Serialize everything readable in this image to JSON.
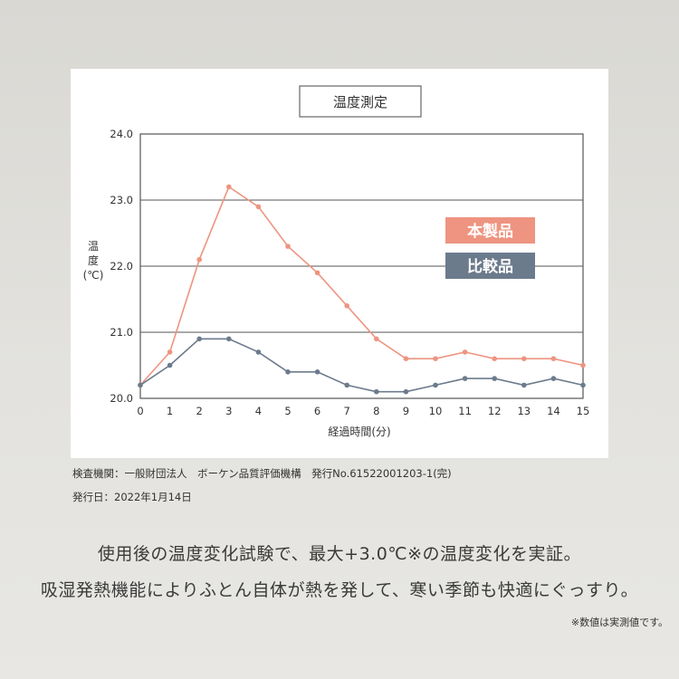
{
  "chart_data": {
    "type": "line",
    "title": "温度測定",
    "ylabel": "温度(℃)",
    "xlabel": "経過時間(分)",
    "x": [
      0,
      1,
      2,
      3,
      4,
      5,
      6,
      7,
      8,
      9,
      10,
      11,
      12,
      13,
      14,
      15
    ],
    "xlim": [
      0,
      15
    ],
    "ylim": [
      20.0,
      24.0
    ],
    "yticks": [
      "20.0",
      "21.0",
      "22.0",
      "23.0",
      "24.0"
    ],
    "grid": true,
    "legend_position": "right",
    "series": [
      {
        "name": "本製品",
        "color": "#ee9481",
        "values": [
          20.2,
          20.7,
          22.1,
          23.2,
          22.9,
          22.3,
          21.9,
          21.4,
          20.9,
          20.6,
          20.6,
          20.7,
          20.6,
          20.6,
          20.6,
          20.5
        ]
      },
      {
        "name": "比較品",
        "color": "#6c7b8c",
        "values": [
          20.2,
          20.5,
          20.9,
          20.9,
          20.7,
          20.4,
          20.4,
          20.2,
          20.1,
          20.1,
          20.2,
          20.3,
          20.3,
          20.2,
          20.3,
          20.2
        ]
      }
    ]
  },
  "source": {
    "line1": "検査機関：一般財団法人　ボーケン品質評価機構　発行No.61522001203-1(完)",
    "line2": "発行日：2022年1月14日"
  },
  "caption": {
    "line1": "使用後の温度変化試験で、最大+3.0℃※の温度変化を実証。",
    "line2": "吸湿発熱機能によりふとん自体が熱を発して、寒い季節も快適にぐっすり。"
  },
  "note": "※数値は実測値です。"
}
